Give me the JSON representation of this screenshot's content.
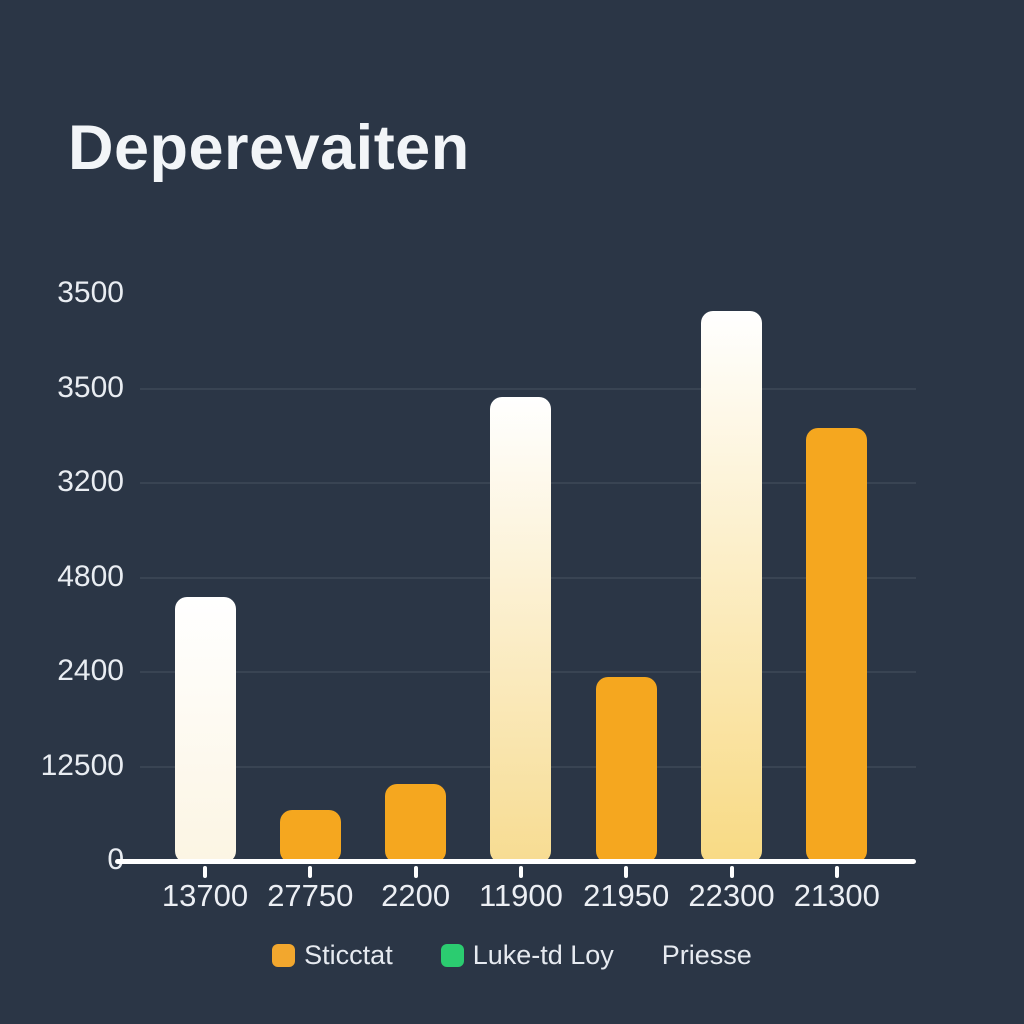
{
  "title": "Deperevaiten",
  "colors": {
    "background": "#2B3646",
    "title_text": "#F2F5F8",
    "axis_text": "#E9EDF2",
    "legend_text": "#E6EAF0",
    "axis_line": "#FFFFFF",
    "gridline": "rgba(255,255,255,0.07)",
    "orange_bar": "#F5A71F",
    "white_bar_top": "#FFFFFF",
    "legend_orange": "#F2A72E",
    "legend_green": "#2BCC70"
  },
  "chart_data": {
    "type": "bar",
    "title": "Deperevaiten",
    "categories": [
      "13700",
      "27750",
      "2200",
      "11900",
      "21950",
      "22300",
      "21300"
    ],
    "values_pct_of_plot_height": [
      46.7,
      9.3,
      13.9,
      81.8,
      32.6,
      96.8,
      76.3
    ],
    "y_tick_labels": [
      "3500",
      "3500",
      "3200",
      "4800",
      "2400",
      "12500",
      "0"
    ],
    "bar_styles": [
      "white",
      "orange",
      "orange",
      "white",
      "orange",
      "white",
      "orange"
    ],
    "bar_gradient_bottoms": [
      "#FCF5E3",
      null,
      null,
      "#F7DC92",
      null,
      "#F8DA84",
      null
    ],
    "gridlines": "faint horizontal lines at inner y-tick rows",
    "axis_note": "y tick labels are non-monotonic decorative values; bar heights recorded as % of plot height",
    "legend_position": "bottom-center",
    "legend": [
      {
        "label": "Sticctat",
        "swatch": "#F2A72E"
      },
      {
        "label": "Luke-td Loy",
        "swatch": "#2BCC70"
      },
      {
        "label": "Priesse",
        "swatch": null
      }
    ]
  }
}
